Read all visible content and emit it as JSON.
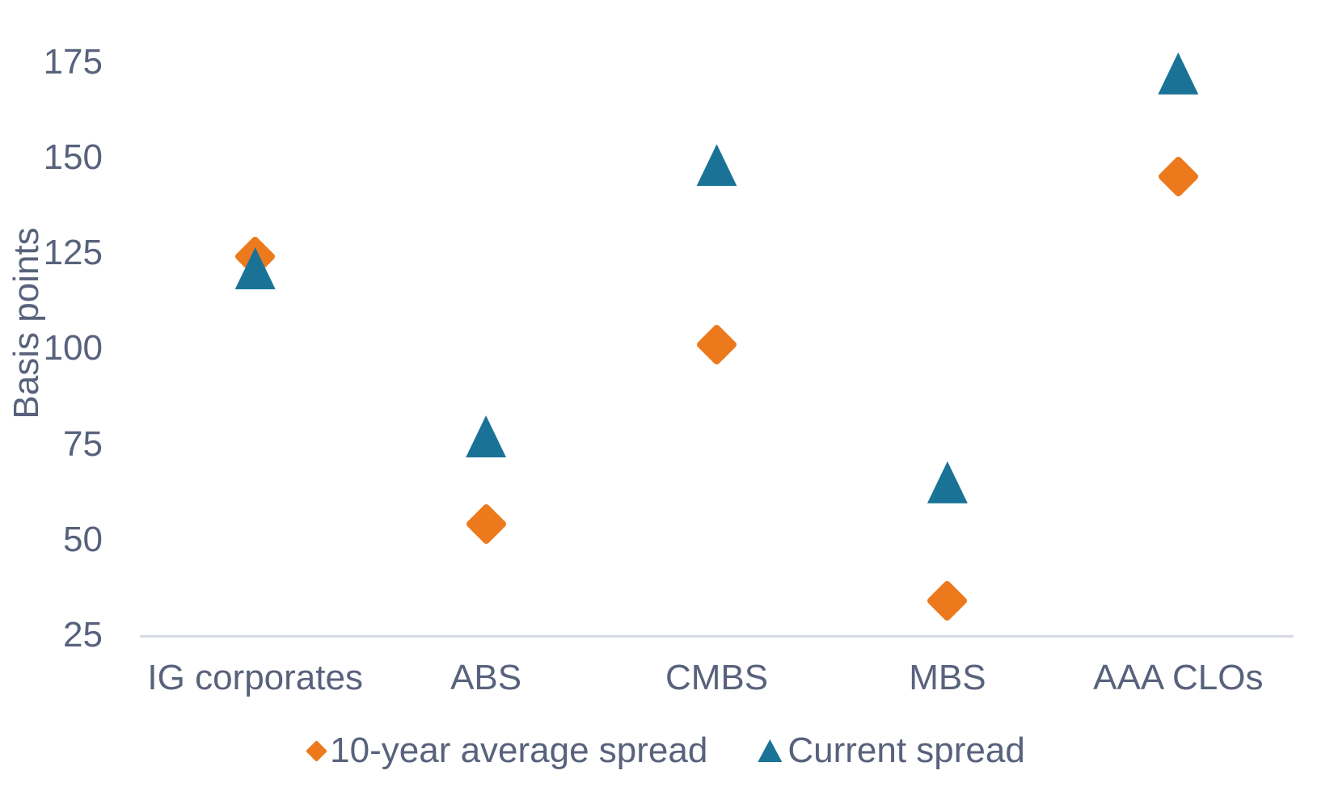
{
  "chart_data": {
    "type": "scatter",
    "title": "",
    "ylabel": "Basis points",
    "xlabel": "",
    "categories": [
      "IG corporates",
      "ABS",
      "CMBS",
      "MBS",
      "AAA CLOs"
    ],
    "series": [
      {
        "name": "10-year average spread",
        "marker": "diamond",
        "color": "#EC7A1C",
        "values": [
          124,
          54,
          101,
          34,
          145
        ]
      },
      {
        "name": "Current spread",
        "marker": "triangle",
        "color": "#1A7396",
        "values": [
          121,
          77,
          148,
          65,
          172
        ]
      }
    ],
    "yticks": [
      175,
      150,
      125,
      100,
      75,
      50,
      25
    ],
    "ylim": [
      25,
      180
    ],
    "grid": false,
    "legend_position": "bottom",
    "axis_line_color": "#D6DAE3",
    "text_color": "#58627C"
  }
}
